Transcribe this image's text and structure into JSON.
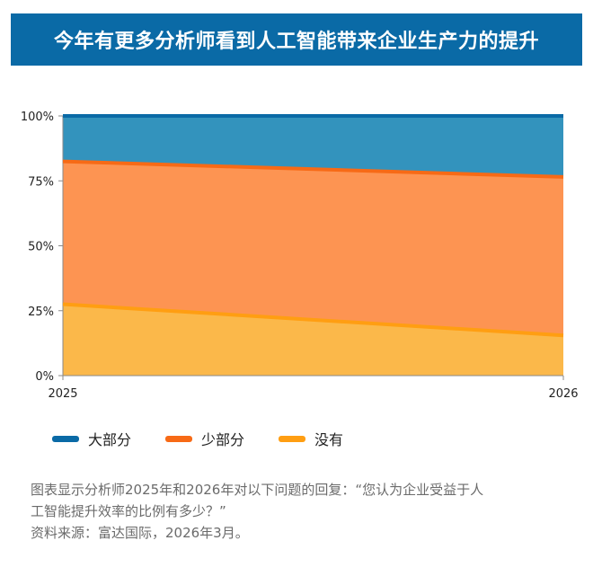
{
  "header": {
    "title": "今年有更多分析师看到人工智能带来企业生产力的提升"
  },
  "chart_data": {
    "type": "area",
    "stacked": true,
    "x": [
      "2025",
      "2026"
    ],
    "ylim": [
      0,
      100
    ],
    "yticks": [
      "0%",
      "25%",
      "50%",
      "75%",
      "100%"
    ],
    "series": [
      {
        "name": "没有",
        "values": [
          27.5,
          15.5
        ],
        "color": "#fbb84a",
        "line_color": "#ff9e12"
      },
      {
        "name": "少部分",
        "values": [
          55,
          61
        ],
        "color": "#fd9452",
        "line_color": "#f76a16"
      },
      {
        "name": "大部分",
        "values": [
          17.5,
          23.5
        ],
        "color": "#3393bd",
        "line_color": "#0a6aa6"
      }
    ],
    "legend": [
      "大部分",
      "少部分",
      "没有"
    ],
    "legend_position": "bottom-left",
    "grid": false
  },
  "caption": {
    "line1": "图表显示分析师2025年和2026年对以下问题的回复：“您认为企业受益于人",
    "line2": "工智能提升效率的比例有多少？”",
    "source": "资料来源：富达国际，2026年3月。"
  }
}
